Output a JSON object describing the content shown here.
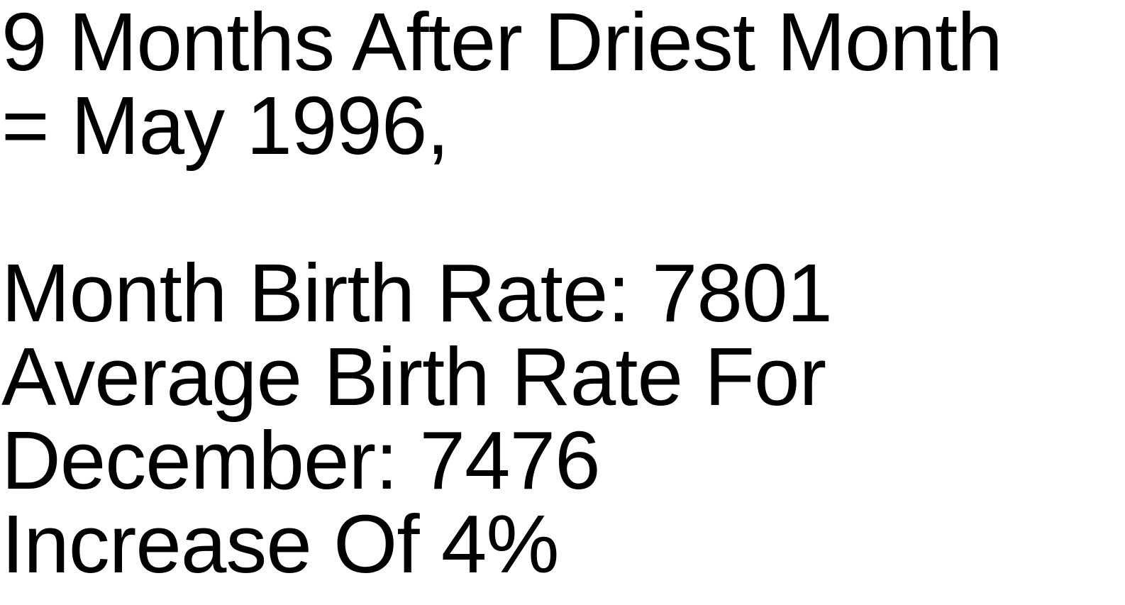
{
  "lines": [
    "9 Months After Driest Month",
    "= May 1996,",
    "",
    "Month Birth Rate: 7801",
    "Average Birth Rate For",
    "December: 7476",
    "Increase Of 4%"
  ],
  "colors": {
    "background": "#ffffff",
    "text": "#000000"
  }
}
